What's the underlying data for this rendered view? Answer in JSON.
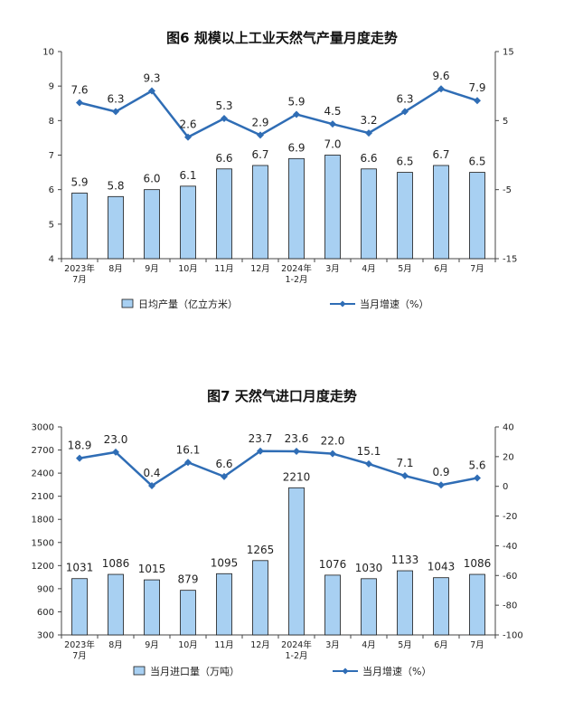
{
  "colors": {
    "bar_fill": "#a8d0f2",
    "bar_stroke": "#1a1a1a",
    "line": "#2f6db5",
    "axis": "#444444",
    "text": "#222222"
  },
  "chart_data": [
    {
      "type": "bar",
      "title": "图6 规模以上工业天然气产量月度走势",
      "categories": [
        "2023年\n7月",
        "8月",
        "9月",
        "10月",
        "11月",
        "12月",
        "2024年\n1-2月",
        "3月",
        "4月",
        "5月",
        "6月",
        "7月"
      ],
      "series": [
        {
          "name": "日均产量（亿立方米）",
          "type": "bar",
          "axis": "left",
          "values": [
            5.9,
            5.8,
            6.0,
            6.1,
            6.6,
            6.7,
            6.9,
            7.0,
            6.6,
            6.5,
            6.7,
            6.5
          ]
        },
        {
          "name": "当月增速（%）",
          "type": "line",
          "axis": "right",
          "values": [
            7.6,
            6.3,
            9.3,
            2.6,
            5.3,
            2.9,
            5.9,
            4.5,
            3.2,
            6.3,
            9.6,
            7.9
          ]
        }
      ],
      "y_left": {
        "min": 4,
        "max": 10,
        "ticks": [
          4,
          5,
          6,
          7,
          8,
          9,
          10
        ]
      },
      "y_right": {
        "min": -15,
        "max": 15,
        "ticks": [
          -15,
          -5,
          5,
          15
        ]
      },
      "legend": "bottom",
      "grid": false
    },
    {
      "type": "bar",
      "title": "图7 天然气进口月度走势",
      "categories": [
        "2023年\n7月",
        "8月",
        "9月",
        "10月",
        "11月",
        "12月",
        "2024年\n1-2月",
        "3月",
        "4月",
        "5月",
        "6月",
        "7月"
      ],
      "series": [
        {
          "name": "当月进口量（万吨）",
          "type": "bar",
          "axis": "left",
          "values": [
            1031,
            1086,
            1015,
            879,
            1095,
            1265,
            2210,
            1076,
            1030,
            1133,
            1043,
            1086
          ]
        },
        {
          "name": "当月增速（%）",
          "type": "line",
          "axis": "right",
          "values": [
            18.9,
            23.0,
            0.4,
            16.1,
            6.6,
            23.7,
            23.6,
            22.0,
            15.1,
            7.1,
            0.9,
            5.6
          ]
        }
      ],
      "y_left": {
        "min": 300,
        "max": 3000,
        "ticks": [
          300,
          600,
          900,
          1200,
          1500,
          1800,
          2100,
          2400,
          2700,
          3000
        ]
      },
      "y_right": {
        "min": -100,
        "max": 40,
        "ticks": [
          -100,
          -80,
          -60,
          -40,
          -20,
          0,
          20,
          40
        ]
      },
      "legend": "bottom",
      "grid": false
    }
  ]
}
